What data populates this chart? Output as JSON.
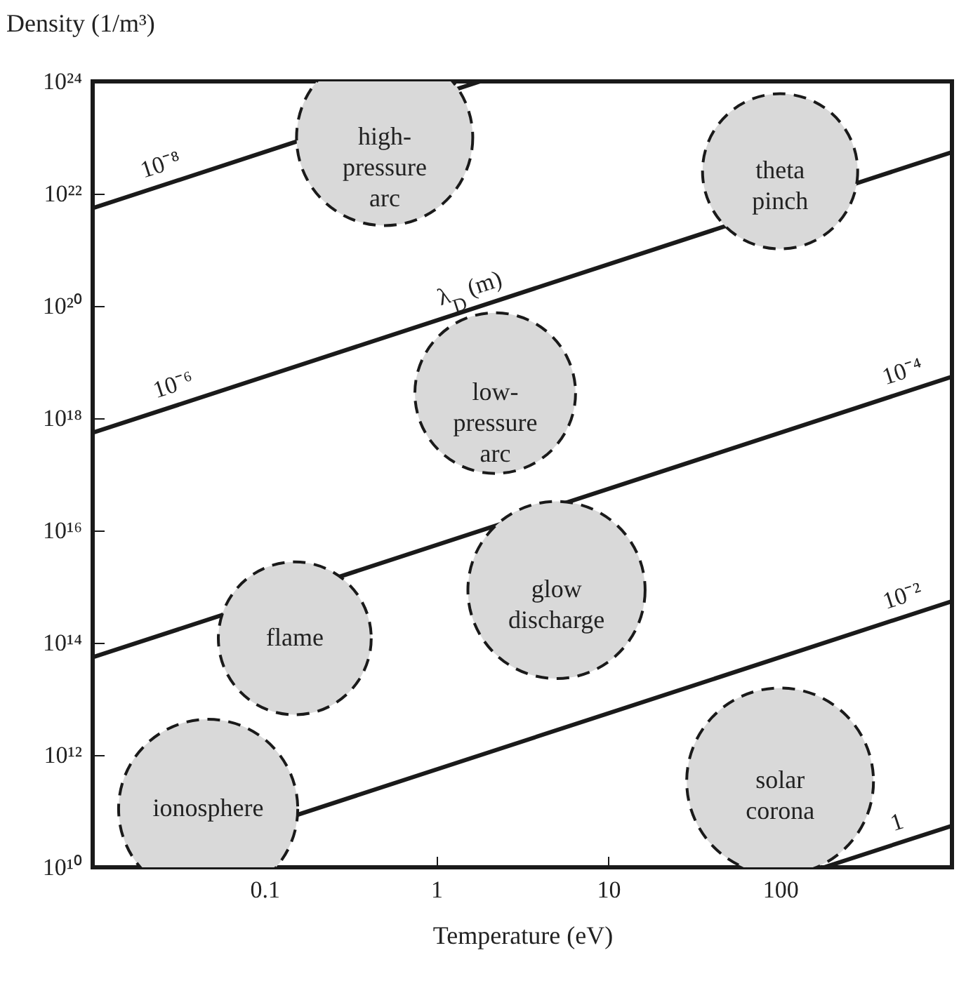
{
  "chart_data": {
    "type": "line",
    "xlabel": "Temperature (eV)",
    "ylabel": "Density (1/m³)",
    "log": "xy",
    "grid": false,
    "xlim": [
      0.01,
      1000
    ],
    "xticks": [
      0.1,
      1,
      10,
      100
    ],
    "ylim": [
      10000000000.0,
      1e+24
    ],
    "yticks": [
      {
        "value": 10000000000.0,
        "label": "10¹⁰"
      },
      {
        "value": 1000000000000.0,
        "label": "10¹²"
      },
      {
        "value": 100000000000000.0,
        "label": "10¹⁴"
      },
      {
        "value": 1e+16,
        "label": "10¹⁶"
      },
      {
        "value": 1e+18,
        "label": "10¹⁸"
      },
      {
        "value": 1e+20,
        "label": "10²⁰"
      },
      {
        "value": 1e+22,
        "label": "10²²"
      },
      {
        "value": 1e+24,
        "label": "10²⁴"
      }
    ],
    "series": [
      {
        "color": "#1a1a1a",
        "x": [
          0.01,
          1.8
        ],
        "values": [
          5.5e+21,
          1e+24
        ]
      },
      {
        "color": "#1a1a1a",
        "x": [
          0.01,
          1000
        ],
        "values": [
          5.5e+17,
          5.5e+22
        ]
      },
      {
        "color": "#1a1a1a",
        "x": [
          0.01,
          1000
        ],
        "values": [
          55000000000000.0,
          5.5e+18
        ]
      },
      {
        "color": "#1a1a1a",
        "x": [
          0.018,
          1000
        ],
        "values": [
          10000000000.0,
          550000000000000.0
        ]
      },
      {
        "color": "#1a1a1a",
        "x": [
          180,
          1000
        ],
        "values": [
          10000000000.0,
          55000000000.0
        ]
      },
      {
        "type": "bubble",
        "name": "high-\npressure\narc",
        "color": "#d9d9d9",
        "x": [
          0.5
        ],
        "values": [
          1e+23
        ],
        "sizes": [
          0.89
        ]
      },
      {
        "type": "bubble",
        "name": "theta\npinch",
        "color": "#d9d9d9",
        "x": [
          100
        ],
        "values": [
          2.5e+22
        ],
        "sizes": [
          0.69
        ]
      },
      {
        "type": "bubble",
        "name": "low-\npressure\narc",
        "color": "#d9d9d9",
        "x": [
          2.2
        ],
        "values": [
          2.8e+18
        ],
        "sizes": [
          0.74
        ]
      },
      {
        "type": "bubble",
        "name": "glow\ndischarge",
        "color": "#d9d9d9",
        "x": [
          5
        ],
        "values": [
          870000000000000.0
        ],
        "sizes": [
          0.9
        ]
      },
      {
        "type": "bubble",
        "name": "flame",
        "color": "#d9d9d9",
        "x": [
          0.15
        ],
        "values": [
          120000000000000.0
        ],
        "sizes": [
          0.67
        ]
      },
      {
        "type": "bubble",
        "name": "ionosphere",
        "color": "#d9d9d9",
        "x": [
          0.047
        ],
        "values": [
          110000000000.0
        ],
        "sizes": [
          0.92
        ]
      },
      {
        "type": "bubble",
        "name": "solar\ncorona",
        "color": "#d9d9d9",
        "x": [
          100
        ],
        "values": [
          340000000000.0
        ],
        "sizes": [
          1
        ]
      }
    ],
    "annotations": [
      {
        "text": "10⁻⁸",
        "x": 0.027,
        "y": 1.5e+22
      },
      {
        "text": "10⁻⁶",
        "x": 0.032,
        "y": 1.8e+18
      },
      {
        "text": "λ$_{D}$ (m)",
        "x": 1.7,
        "y": 9.4e+19
      },
      {
        "text": "10⁻⁴",
        "x": 560,
        "y": 3.1e+18
      },
      {
        "text": "10⁻²",
        "x": 560,
        "y": 310000000000000.0
      },
      {
        "text": "1",
        "x": 520,
        "y": 29000000000.0
      }
    ]
  }
}
